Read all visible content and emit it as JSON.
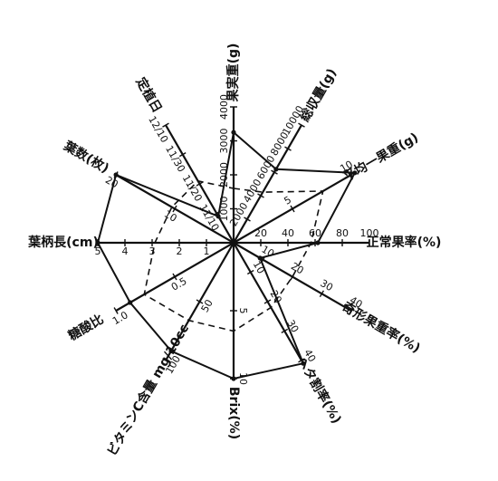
{
  "chart_data": {
    "type": "radar",
    "title": "",
    "axes": [
      {
        "label": "果実重(g)",
        "angle": 90,
        "ticks": [
          "1000",
          "2000",
          "3000",
          "4000"
        ],
        "range": [
          0,
          4000
        ]
      },
      {
        "label": "総収量(g)",
        "angle": 60,
        "ticks": [
          "2000",
          "4000",
          "6000",
          "8000",
          "10000"
        ],
        "range": [
          0,
          10000
        ]
      },
      {
        "label": "平均一果重(g)",
        "angle": 30,
        "ticks": [
          "5",
          "10"
        ],
        "range": [
          0,
          10
        ]
      },
      {
        "label": "正常果率(%)",
        "angle": 0,
        "ticks": [
          "20",
          "40",
          "60",
          "80",
          "100"
        ],
        "range": [
          0,
          100
        ]
      },
      {
        "label": "奇形果重率(%)",
        "angle": -30,
        "ticks": [
          "10",
          "20",
          "30",
          "40"
        ],
        "range": [
          0,
          40
        ]
      },
      {
        "label": "ヘタ割率(%)",
        "angle": -60,
        "ticks": [
          "10",
          "20",
          "30",
          "40"
        ],
        "range": [
          0,
          40
        ]
      },
      {
        "label": "Brix(%)",
        "angle": -90,
        "ticks": [
          "5",
          "10"
        ],
        "range": [
          0,
          10
        ]
      },
      {
        "label": "ビタミンC含量 mg/10cc",
        "angle": -120,
        "ticks": [
          "50",
          "100"
        ],
        "range": [
          0,
          100
        ]
      },
      {
        "label": "糖酸比",
        "angle": -150,
        "ticks": [
          "0.5",
          "1.0"
        ],
        "range": [
          0,
          1.25
        ]
      },
      {
        "label": "葉柄長(cm)",
        "angle": 180,
        "ticks": [
          "1",
          "2",
          "3",
          "4",
          "5"
        ],
        "range": [
          0,
          5
        ]
      },
      {
        "label": "葉数(枚)",
        "angle": 150,
        "ticks": [
          "10",
          "20"
        ],
        "range": [
          0,
          20
        ]
      },
      {
        "label": "定植日",
        "angle": 120,
        "ticks": [
          "11/10",
          "11/20",
          "11/30",
          "12/10"
        ],
        "range": [
          0,
          4
        ]
      }
    ],
    "series": [
      {
        "style": "solid",
        "values": [
          3250,
          6250,
          10.3,
          62,
          9,
          41,
          10.0,
          92,
          1.1,
          5,
          20,
          0.9
        ]
      },
      {
        "style": "dashed",
        "values": [
          1600,
          4300,
          7.6,
          57,
          20,
          22,
          6.5,
          66,
          0.95,
          2.9,
          10.5,
          2.1
        ]
      }
    ],
    "grid": false,
    "legend": "none"
  }
}
